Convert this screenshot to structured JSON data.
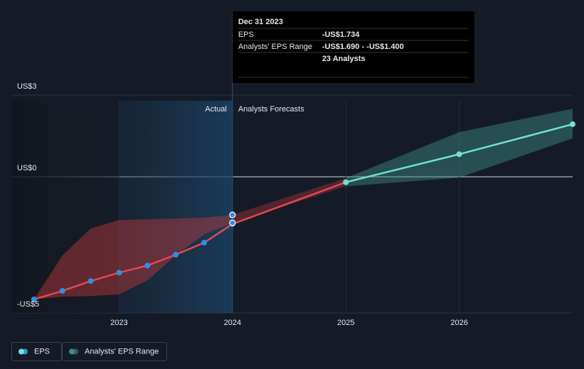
{
  "chart_data": {
    "type": "line",
    "x": [
      2022.25,
      2022.5,
      2022.75,
      2023,
      2023.25,
      2023.5,
      2023.75,
      2024,
      2025,
      2026,
      2027
    ],
    "series": [
      {
        "name": "EPS",
        "color": "#e5484d",
        "values": [
          -4.5,
          -4.19,
          -3.83,
          -3.52,
          -3.26,
          -2.86,
          -2.42,
          -1.734,
          -0.2,
          0.83,
          1.93
        ],
        "segment_colors": [
          "#e5484d",
          "#e5484d",
          "#e5484d",
          "#e5484d",
          "#e5484d",
          "#e5484d",
          "#e5484d",
          "#e5484d",
          "#6fe3d3",
          "#6fe3d3"
        ],
        "point_colors": [
          "#2d8fe6",
          "#2d8fe6",
          "#2d8fe6",
          "#2d8fe6",
          "#2d8fe6",
          "#2d8fe6",
          "#2d8fe6",
          "#2d8fe6",
          "#6fe3d3",
          "#6fe3d3",
          "#6fe3d3"
        ]
      }
    ],
    "range": {
      "name": "Analysts' EPS Range",
      "low": [
        -4.5,
        -4.4,
        -4.38,
        -4.32,
        -3.8,
        -2.89,
        -2.11,
        -1.69,
        -0.35,
        -0.03,
        1.41
      ],
      "high": [
        -4.5,
        -2.89,
        -1.9,
        -1.59,
        -1.56,
        -1.53,
        -1.5,
        -1.4,
        -0.05,
        1.64,
        2.5
      ],
      "segment_colors": [
        "#c0393d",
        "#c0393d",
        "#c0393d",
        "#c0393d",
        "#c0393d",
        "#c0393d",
        "#c0393d",
        "#a0343a",
        "#3f8e85",
        "#3f8e85"
      ]
    },
    "xlim": [
      2022.05,
      2027
    ],
    "xticks": [
      2023,
      2024,
      2025,
      2026
    ],
    "ylim": [
      -5,
      3
    ],
    "yticks": [
      {
        "value": 3,
        "label": "US$3"
      },
      {
        "value": 0,
        "label": "US$0"
      },
      {
        "value": -5,
        "label": "-US$5"
      }
    ],
    "divider": 2024,
    "annotations": {
      "actual": "Actual",
      "forecast": "Analysts Forecasts"
    },
    "tooltip": {
      "date": "Dec 31 2023",
      "rows": [
        {
          "label": "EPS",
          "value": "-US$1.734"
        },
        {
          "label": "Analysts' EPS Range",
          "value": "-US$1.690 - -US$1.400"
        },
        {
          "label": "",
          "value": "23 Analysts"
        }
      ]
    },
    "legend": [
      "EPS",
      "Analysts' EPS Range"
    ]
  }
}
